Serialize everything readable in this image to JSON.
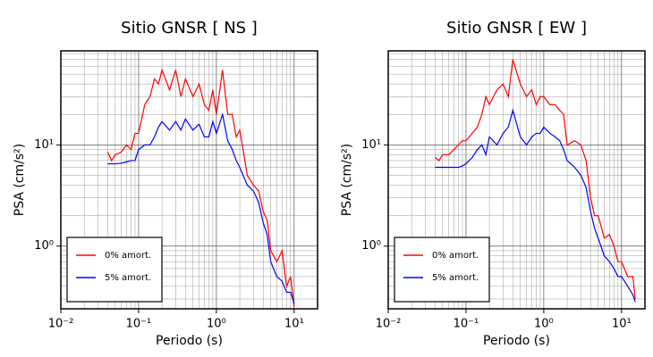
{
  "chart_data": [
    {
      "type": "line",
      "title": "Sitio GNSR [ NS ]",
      "x_label": "Periodo (s)",
      "y_label": "PSA (cm/s²)",
      "log_x": true,
      "log_y": true,
      "grid": true,
      "legend": "lower left",
      "xlim": [
        0.01,
        20
      ],
      "ylim": [
        0.24,
        85
      ],
      "xticks": [
        {
          "value": 0.01,
          "label": "10⁻²"
        },
        {
          "value": 0.1,
          "label": "10⁻¹"
        },
        {
          "value": 1,
          "label": "10⁰"
        },
        {
          "value": 10,
          "label": "10¹"
        }
      ],
      "yticks": [
        {
          "value": 1,
          "label": "10⁰"
        },
        {
          "value": 10,
          "label": "10¹"
        }
      ],
      "x": [
        0.04,
        0.045,
        0.05,
        0.06,
        0.07,
        0.08,
        0.09,
        0.1,
        0.12,
        0.14,
        0.16,
        0.18,
        0.2,
        0.25,
        0.3,
        0.35,
        0.4,
        0.5,
        0.6,
        0.7,
        0.8,
        0.9,
        1.0,
        1.2,
        1.4,
        1.6,
        1.8,
        2,
        2.5,
        3,
        3.5,
        4,
        4.5,
        5,
        6,
        7,
        8,
        9,
        10
      ],
      "series": [
        {
          "name": "0% amort.",
          "color": "#ff0000",
          "values": [
            8.5,
            7,
            8,
            8.5,
            10,
            9,
            13,
            13,
            25,
            30,
            45,
            40,
            55,
            35,
            55,
            30,
            45,
            30,
            40,
            25,
            22,
            35,
            20,
            55,
            20,
            20,
            12,
            14,
            5,
            4,
            3.5,
            2.2,
            1.8,
            0.9,
            0.7,
            0.9,
            0.4,
            0.5,
            0.25
          ]
        },
        {
          "name": "5% amort.",
          "color": "#0000ff",
          "values": [
            6.5,
            6.5,
            6.5,
            6.6,
            6.8,
            7,
            7,
            9,
            10,
            10,
            12,
            15,
            17,
            14,
            17,
            14,
            18,
            14,
            16,
            12,
            12,
            17,
            13,
            20,
            11,
            9,
            7,
            6,
            4,
            3.5,
            2.7,
            1.7,
            1.3,
            0.7,
            0.5,
            0.45,
            0.35,
            0.35,
            0.27
          ]
        }
      ]
    },
    {
      "type": "line",
      "title": "Sitio GNSR [ EW ]",
      "x_label": "Periodo (s)",
      "y_label": "PSA (cm/s²)",
      "log_x": true,
      "log_y": true,
      "grid": true,
      "legend": "lower left",
      "xlim": [
        0.01,
        20
      ],
      "ylim": [
        0.24,
        85
      ],
      "xticks": [
        {
          "value": 0.01,
          "label": "10⁻²"
        },
        {
          "value": 0.1,
          "label": "10⁻¹"
        },
        {
          "value": 1,
          "label": "10⁰"
        },
        {
          "value": 10,
          "label": "10¹"
        }
      ],
      "yticks": [
        {
          "value": 1,
          "label": "10⁰"
        },
        {
          "value": 10,
          "label": "10¹"
        }
      ],
      "x": [
        0.04,
        0.045,
        0.05,
        0.06,
        0.07,
        0.08,
        0.09,
        0.1,
        0.12,
        0.14,
        0.16,
        0.18,
        0.2,
        0.25,
        0.3,
        0.35,
        0.4,
        0.5,
        0.6,
        0.7,
        0.8,
        0.9,
        1.0,
        1.2,
        1.4,
        1.6,
        1.8,
        2,
        2.5,
        3,
        3.5,
        4,
        4.5,
        5,
        6,
        7,
        8,
        9,
        10,
        12,
        14,
        15
      ],
      "series": [
        {
          "name": "0% amort.",
          "color": "#ff0000",
          "values": [
            7.5,
            7,
            8,
            8,
            9,
            10,
            11,
            11,
            13,
            15,
            20,
            30,
            25,
            35,
            40,
            30,
            70,
            40,
            30,
            35,
            25,
            30,
            30,
            25,
            25,
            22,
            20,
            10,
            11,
            10,
            7,
            3,
            2,
            2,
            1.2,
            1.3,
            1,
            0.7,
            0.7,
            0.5,
            0.5,
            0.3
          ]
        },
        {
          "name": "5% amort.",
          "color": "#0000ff",
          "values": [
            6,
            6,
            6,
            6,
            6,
            6,
            6.2,
            6.5,
            7.5,
            9,
            10,
            8,
            12,
            10,
            13,
            15,
            22,
            12,
            10,
            12,
            13,
            13,
            15,
            13,
            12,
            11,
            9,
            7,
            6,
            5,
            3.8,
            2.2,
            1.5,
            1.2,
            0.8,
            0.7,
            0.6,
            0.5,
            0.5,
            0.4,
            0.33,
            0.28
          ]
        }
      ]
    }
  ]
}
